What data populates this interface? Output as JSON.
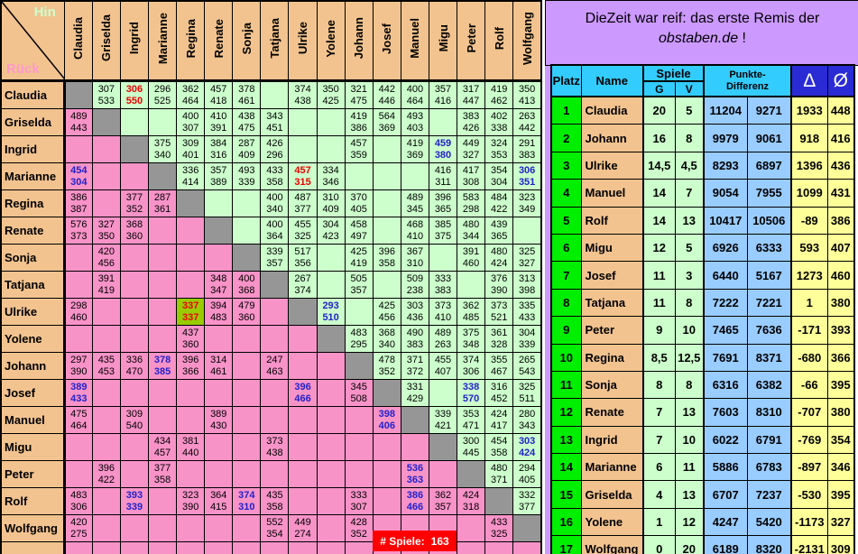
{
  "corner": {
    "hin_label": "Hin",
    "rueck_label": "Rück"
  },
  "players": [
    "Claudia",
    "Griselda",
    "Ingrid",
    "Marianne",
    "Regina",
    "Renate",
    "Sonja",
    "Tatjana",
    "Ulrike",
    "Yolene",
    "Johann",
    "Josef",
    "Manuel",
    "Migu",
    "Peter",
    "Rolf",
    "Wolfgang"
  ],
  "matrix_rows": [
    {
      "name": "Claudia",
      "cells": [
        null,
        [
          "307",
          "533"
        ],
        [
          "306",
          "550",
          "red"
        ],
        [
          "296",
          "525"
        ],
        [
          "362",
          "464"
        ],
        [
          "457",
          "418"
        ],
        [
          "378",
          "461"
        ],
        [],
        [
          "374",
          "438"
        ],
        [
          "350",
          "425"
        ],
        [
          "321",
          "475"
        ],
        [
          "442",
          "446"
        ],
        [
          "400",
          "464"
        ],
        [
          "357",
          "416"
        ],
        [
          "317",
          "447"
        ],
        [
          "419",
          "462"
        ],
        [
          "350",
          "413"
        ]
      ]
    },
    {
      "name": "Griselda",
      "cells": [
        [
          "489",
          "443"
        ],
        null,
        [],
        [],
        [
          "400",
          "307"
        ],
        [
          "410",
          "391"
        ],
        [
          "438",
          "475"
        ],
        [
          "343",
          "451"
        ],
        [],
        [],
        [
          "419",
          "386"
        ],
        [
          "564",
          "369"
        ],
        [
          "493",
          "403"
        ],
        [],
        [
          "383",
          "426"
        ],
        [
          "402",
          "338"
        ],
        [
          "263",
          "442"
        ]
      ]
    },
    {
      "name": "Ingrid",
      "cells": [
        [],
        [],
        null,
        [
          "375",
          "340"
        ],
        [
          "309",
          "401"
        ],
        [
          "384",
          "316"
        ],
        [
          "287",
          "409"
        ],
        [
          "426",
          "296"
        ],
        [],
        [],
        [
          "457",
          "359"
        ],
        [],
        [
          "419",
          "369"
        ],
        [
          "459",
          "380",
          "blue"
        ],
        [
          "449",
          "327"
        ],
        [
          "324",
          "353"
        ],
        [
          "291",
          "383"
        ]
      ]
    },
    {
      "name": "Marianne",
      "cells": [
        [
          "454",
          "304",
          "blue"
        ],
        [],
        [],
        null,
        [
          "336",
          "414"
        ],
        [
          "357",
          "389"
        ],
        [
          "493",
          "339"
        ],
        [
          "433",
          "358"
        ],
        [
          "457",
          "315",
          "red"
        ],
        [
          "334",
          "346"
        ],
        [],
        [],
        [],
        [
          "416",
          "311"
        ],
        [
          "417",
          "308"
        ],
        [
          "354",
          "304"
        ],
        [
          "306",
          "351",
          "blue"
        ]
      ]
    },
    {
      "name": "Regina",
      "cells": [
        [
          "386",
          "387"
        ],
        [],
        [
          "377",
          "352"
        ],
        [
          "287",
          "361"
        ],
        null,
        [],
        [],
        [
          "400",
          "340"
        ],
        [
          "487",
          "377"
        ],
        [
          "310",
          "409"
        ],
        [
          "370",
          "405"
        ],
        [],
        [
          "489",
          "345"
        ],
        [
          "396",
          "365"
        ],
        [
          "583",
          "298"
        ],
        [
          "484",
          "422"
        ],
        [
          "323",
          "349"
        ]
      ]
    },
    {
      "name": "Renate",
      "cells": [
        [
          "576",
          "373"
        ],
        [
          "327",
          "350"
        ],
        [
          "368",
          "360"
        ],
        [],
        [],
        null,
        [],
        [
          "400",
          "364"
        ],
        [
          "455",
          "325"
        ],
        [
          "304",
          "423"
        ],
        [
          "458",
          "497"
        ],
        [],
        [
          "468",
          "410"
        ],
        [
          "385",
          "375"
        ],
        [
          "480",
          "344"
        ],
        [
          "439",
          "365"
        ],
        []
      ]
    },
    {
      "name": "Sonja",
      "cells": [
        [],
        [
          "420",
          "456"
        ],
        [],
        [],
        [],
        [],
        null,
        [
          "339",
          "357"
        ],
        [
          "517",
          "356"
        ],
        [],
        [
          "425",
          "419"
        ],
        [
          "396",
          "358"
        ],
        [
          "367",
          "310"
        ],
        [],
        [
          "391",
          "460"
        ],
        [
          "480",
          "424"
        ],
        [
          "325",
          "327"
        ]
      ]
    },
    {
      "name": "Tatjana",
      "cells": [
        [],
        [
          "391",
          "419"
        ],
        [],
        [],
        [],
        [
          "348",
          "347"
        ],
        [
          "400",
          "368"
        ],
        null,
        [
          "267",
          "374"
        ],
        [],
        [
          "505",
          "357"
        ],
        [],
        [
          "509",
          "238"
        ],
        [
          "333",
          "383"
        ],
        [],
        [
          "376",
          "390"
        ],
        [
          "313",
          "398"
        ]
      ]
    },
    {
      "name": "Ulrike",
      "cells": [
        [
          "298",
          "460"
        ],
        [],
        [],
        [],
        [
          "337",
          "337",
          "remis"
        ],
        [
          "394",
          "483"
        ],
        [
          "479",
          "360"
        ],
        [],
        null,
        [
          "293",
          "510",
          "blue"
        ],
        [],
        [
          "425",
          "456"
        ],
        [
          "303",
          "436"
        ],
        [
          "373",
          "410"
        ],
        [
          "362",
          "485"
        ],
        [
          "373",
          "521"
        ],
        [
          "335",
          "433"
        ]
      ]
    },
    {
      "name": "Yolene",
      "cells": [
        [],
        [],
        [],
        [],
        [
          "437",
          "360"
        ],
        [],
        [],
        [],
        [],
        null,
        [
          "483",
          "295"
        ],
        [
          "368",
          "340"
        ],
        [
          "490",
          "383"
        ],
        [
          "489",
          "263"
        ],
        [
          "375",
          "348"
        ],
        [
          "361",
          "328"
        ],
        [
          "304",
          "339"
        ]
      ]
    },
    {
      "name": "Johann",
      "cells": [
        [
          "297",
          "390"
        ],
        [
          "435",
          "453"
        ],
        [
          "336",
          "470"
        ],
        [
          "378",
          "385",
          "blue"
        ],
        [
          "396",
          "366"
        ],
        [
          "314",
          "461"
        ],
        [],
        [
          "247",
          "463"
        ],
        [],
        [],
        null,
        [
          "478",
          "352"
        ],
        [
          "371",
          "372"
        ],
        [
          "455",
          "407"
        ],
        [
          "374",
          "306"
        ],
        [
          "355",
          "467"
        ],
        [
          "265",
          "543"
        ]
      ]
    },
    {
      "name": "Josef",
      "cells": [
        [
          "389",
          "433",
          "blue"
        ],
        [],
        [],
        [],
        [],
        [],
        [],
        [],
        [
          "396",
          "466",
          "blue"
        ],
        [],
        [
          "345",
          "508"
        ],
        null,
        [
          "331",
          "429"
        ],
        [],
        [
          "338",
          "570",
          "blue"
        ],
        [
          "316",
          "452"
        ],
        [
          "325",
          "511"
        ]
      ]
    },
    {
      "name": "Manuel",
      "cells": [
        [
          "475",
          "464"
        ],
        [],
        [
          "309",
          "540"
        ],
        [],
        [],
        [
          "389",
          "430"
        ],
        [],
        [],
        [],
        [],
        [],
        [
          "398",
          "406",
          "blue"
        ],
        null,
        [
          "339",
          "421"
        ],
        [
          "353",
          "471"
        ],
        [
          "424",
          "417"
        ],
        [
          "280",
          "343"
        ]
      ]
    },
    {
      "name": "Migu",
      "cells": [
        [],
        [],
        [],
        [
          "434",
          "457"
        ],
        [
          "381",
          "440"
        ],
        [],
        [],
        [
          "373",
          "438"
        ],
        [],
        [],
        [],
        [],
        [],
        null,
        [
          "300",
          "445"
        ],
        [
          "454",
          "358"
        ],
        [
          "303",
          "424",
          "blue"
        ]
      ]
    },
    {
      "name": "Peter",
      "cells": [
        [],
        [
          "396",
          "422"
        ],
        [],
        [
          "377",
          "358"
        ],
        [],
        [],
        [],
        [],
        [],
        [],
        [],
        [],
        [
          "536",
          "363",
          "blue"
        ],
        [],
        null,
        [
          "480",
          "371"
        ],
        [
          "294",
          "405"
        ]
      ]
    },
    {
      "name": "Rolf",
      "cells": [
        [
          "483",
          "306"
        ],
        [],
        [
          "393",
          "339",
          "blue"
        ],
        [],
        [
          "323",
          "390"
        ],
        [
          "364",
          "415"
        ],
        [
          "374",
          "310",
          "blue"
        ],
        [
          "435",
          "358"
        ],
        [],
        [],
        [
          "333",
          "307"
        ],
        [],
        [
          "386",
          "466",
          "blue"
        ],
        [
          "362",
          "357"
        ],
        [
          "424",
          "318"
        ],
        null,
        [
          "332",
          "377"
        ]
      ]
    },
    {
      "name": "Wolfgang",
      "cells": [
        [
          "420",
          "275"
        ],
        [],
        [],
        [],
        [],
        [],
        [],
        [
          "552",
          "354"
        ],
        [
          "449",
          "274"
        ],
        [],
        [
          "428",
          "352"
        ],
        [],
        [],
        [],
        [],
        [
          "433",
          "325"
        ],
        null
      ]
    },
    {
      "name": "...",
      "cells": "empty-row"
    }
  ],
  "games_badge": {
    "label": "# Spiele:",
    "value": "163"
  },
  "title": {
    "line1": "DieZeit war reif: das erste Remis der",
    "brand": "obstaben.de",
    "suffix": " !"
  },
  "standings": {
    "col_headers": {
      "platz": "Platz",
      "name": "Name",
      "spiele": "Spiele",
      "g": "G",
      "v": "V",
      "punkte_line1": "Punkte-",
      "punkte_line2": "Differenz",
      "delta": "Δ",
      "avg": "Ø"
    },
    "rows": [
      {
        "platz": "1",
        "name": "Claudia",
        "g": "20",
        "v": "5",
        "pkt_plus": "11204",
        "pkt_minus": "9271",
        "delta": "1933",
        "avg": "448"
      },
      {
        "platz": "2",
        "name": "Johann",
        "g": "16",
        "v": "8",
        "pkt_plus": "9979",
        "pkt_minus": "9061",
        "delta": "918",
        "avg": "416"
      },
      {
        "platz": "3",
        "name": "Ulrike",
        "g": "14,5",
        "v": "4,5",
        "pkt_plus": "8293",
        "pkt_minus": "6897",
        "delta": "1396",
        "avg": "436"
      },
      {
        "platz": "4",
        "name": "Manuel",
        "g": "14",
        "v": "7",
        "pkt_plus": "9054",
        "pkt_minus": "7955",
        "delta": "1099",
        "avg": "431"
      },
      {
        "platz": "5",
        "name": "Rolf",
        "g": "14",
        "v": "13",
        "pkt_plus": "10417",
        "pkt_minus": "10506",
        "delta": "-89",
        "avg": "386"
      },
      {
        "platz": "6",
        "name": "Migu",
        "g": "12",
        "v": "5",
        "pkt_plus": "6926",
        "pkt_minus": "6333",
        "delta": "593",
        "avg": "407"
      },
      {
        "platz": "7",
        "name": "Josef",
        "g": "11",
        "v": "3",
        "pkt_plus": "6440",
        "pkt_minus": "5167",
        "delta": "1273",
        "avg": "460"
      },
      {
        "platz": "8",
        "name": "Tatjana",
        "g": "11",
        "v": "8",
        "pkt_plus": "7222",
        "pkt_minus": "7221",
        "delta": "1",
        "avg": "380"
      },
      {
        "platz": "9",
        "name": "Peter",
        "g": "9",
        "v": "10",
        "pkt_plus": "7465",
        "pkt_minus": "7636",
        "delta": "-171",
        "avg": "393"
      },
      {
        "platz": "10",
        "name": "Regina",
        "g": "8,5",
        "v": "12,5",
        "pkt_plus": "7691",
        "pkt_minus": "8371",
        "delta": "-680",
        "avg": "366"
      },
      {
        "platz": "11",
        "name": "Sonja",
        "g": "8",
        "v": "8",
        "pkt_plus": "6316",
        "pkt_minus": "6382",
        "delta": "-66",
        "avg": "395"
      },
      {
        "platz": "12",
        "name": "Renate",
        "g": "7",
        "v": "13",
        "pkt_plus": "7603",
        "pkt_minus": "8310",
        "delta": "-707",
        "avg": "380"
      },
      {
        "platz": "13",
        "name": "Ingrid",
        "g": "7",
        "v": "10",
        "pkt_plus": "6022",
        "pkt_minus": "6791",
        "delta": "-769",
        "avg": "354"
      },
      {
        "platz": "14",
        "name": "Marianne",
        "g": "6",
        "v": "11",
        "pkt_plus": "5886",
        "pkt_minus": "6783",
        "delta": "-897",
        "avg": "346"
      },
      {
        "platz": "15",
        "name": "Griselda",
        "g": "4",
        "v": "13",
        "pkt_plus": "6707",
        "pkt_minus": "7237",
        "delta": "-530",
        "avg": "395"
      },
      {
        "platz": "16",
        "name": "Yolene",
        "g": "1",
        "v": "12",
        "pkt_plus": "4247",
        "pkt_minus": "5420",
        "delta": "-1173",
        "avg": "327"
      },
      {
        "platz": "17",
        "name": "Wolfgang",
        "g": "0",
        "v": "20",
        "pkt_plus": "6189",
        "pkt_minus": "8320",
        "delta": "-2131",
        "avg": "309"
      }
    ]
  },
  "colors": {
    "header_tan": "#F2C38F",
    "upper_triangle_green": "#CCFFCC",
    "lower_triangle_pink": "#F893C8",
    "diagonal_gray": "#969696",
    "corner_green": "#339966",
    "remis_olive": "#99CC00",
    "panel_lavender": "#CC99FF",
    "table_header_cyan": "#33CCFF",
    "symbol_header_blue": "#2B2BD5",
    "platz_green": "#00EE00",
    "points_light_blue": "#99CCFF",
    "delta_light_yellow": "#FFFF99",
    "badge_red": "#FF0000",
    "score_blue": "#2222CC",
    "score_red": "#EE0000"
  }
}
